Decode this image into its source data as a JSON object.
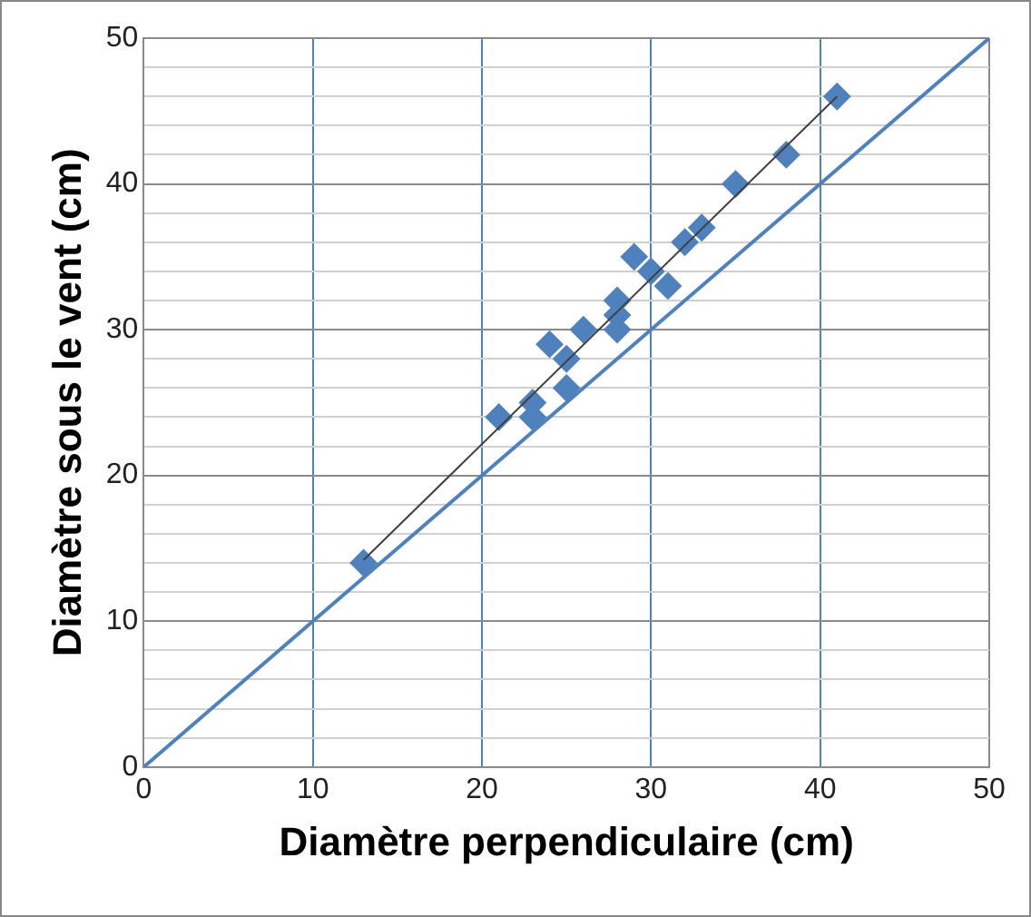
{
  "chart_data": {
    "type": "scatter",
    "xlabel": "Diamètre perpendiculaire (cm)",
    "ylabel": "Diamètre sous le vent (cm)",
    "xlim": [
      0,
      50
    ],
    "ylim": [
      0,
      50
    ],
    "xticks": [
      0,
      10,
      20,
      30,
      40,
      50
    ],
    "yticks": [
      0,
      {
        "value": 2,
        "label": null
      },
      {
        "value": 4,
        "label": null
      },
      {
        "value": 6,
        "label": null
      },
      {
        "value": 8,
        "label": null
      },
      10,
      {
        "value": 12,
        "label": null
      },
      {
        "value": 14,
        "label": null
      },
      {
        "value": 16,
        "label": null
      },
      {
        "value": 18,
        "label": null
      },
      20,
      {
        "value": 22,
        "label": null
      },
      {
        "value": 24,
        "label": null
      },
      {
        "value": 26,
        "label": null
      },
      {
        "value": 28,
        "label": null
      },
      30,
      {
        "value": 32,
        "label": null
      },
      {
        "value": 34,
        "label": null
      },
      {
        "value": 36,
        "label": null
      },
      {
        "value": 38,
        "label": null
      },
      40,
      {
        "value": 42,
        "label": null
      },
      {
        "value": 44,
        "label": null
      },
      {
        "value": 46,
        "label": null
      },
      {
        "value": 48,
        "label": null
      },
      50
    ],
    "grid": true,
    "legend": false,
    "marker": "diamond",
    "series": [
      {
        "type": "line",
        "color": "#4f81bd",
        "x": [
          0,
          50
        ],
        "values": [
          0,
          50
        ],
        "marker": "none"
      },
      {
        "type": "line",
        "color": "#404040",
        "x": [
          13,
          41
        ],
        "values": [
          14.2,
          46
        ],
        "marker": "none"
      },
      {
        "type": "scatter",
        "color": "#4f81bd",
        "x": [
          13,
          21,
          23,
          23,
          24,
          26,
          25,
          25,
          28,
          28,
          28,
          29,
          30,
          31,
          32,
          33,
          35,
          38,
          41
        ],
        "values": [
          14,
          24,
          24,
          25,
          29,
          30,
          26,
          28,
          31,
          32,
          30,
          35,
          34,
          33,
          36,
          37,
          40,
          42,
          46
        ]
      }
    ]
  }
}
